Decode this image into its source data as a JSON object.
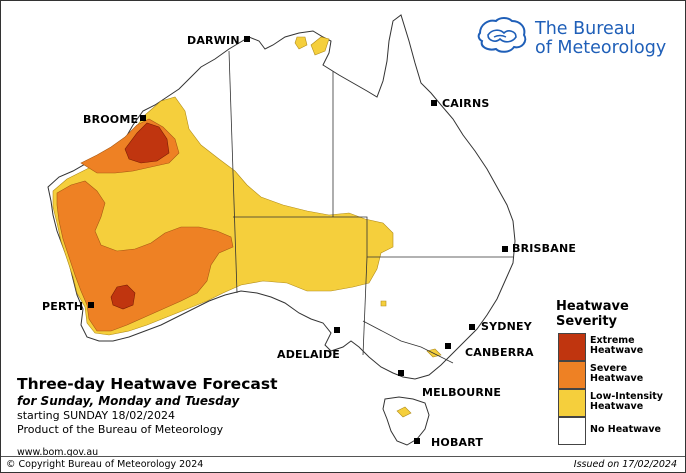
{
  "title": "Three-day Heatwave Forecast",
  "subtitle": "for Sunday, Monday and Tuesday",
  "starting": "starting SUNDAY 18/02/2024",
  "product": "Product of the Bureau of Meteorology",
  "url": "www.bom.gov.au",
  "copyright": "© Copyright Bureau of Meteorology 2024",
  "issued": "Issued on 17/02/2024",
  "brand": {
    "line1": "The Bureau",
    "line2": "of Meteorology",
    "color": "#1f5fb8",
    "logo_icon": "bom-australia-logo-icon"
  },
  "cities": [
    "DARWIN",
    "CAIRNS",
    "BROOME",
    "BRISBANE",
    "PERTH",
    "SYDNEY",
    "ADELAIDE",
    "CANBERRA",
    "MELBOURNE",
    "HOBART"
  ],
  "legend": {
    "title_line1": "Heatwave",
    "title_line2": "Severity",
    "items": [
      {
        "label1": "Extreme",
        "label2": "Heatwave",
        "color": "#c0350f"
      },
      {
        "label1": "Severe",
        "label2": "Heatwave",
        "color": "#ee8124"
      },
      {
        "label1": "Low-Intensity",
        "label2": "Heatwave",
        "color": "#f5cf3c"
      },
      {
        "label1": "No Heatwave",
        "label2": "",
        "color": "#ffffff"
      }
    ]
  }
}
